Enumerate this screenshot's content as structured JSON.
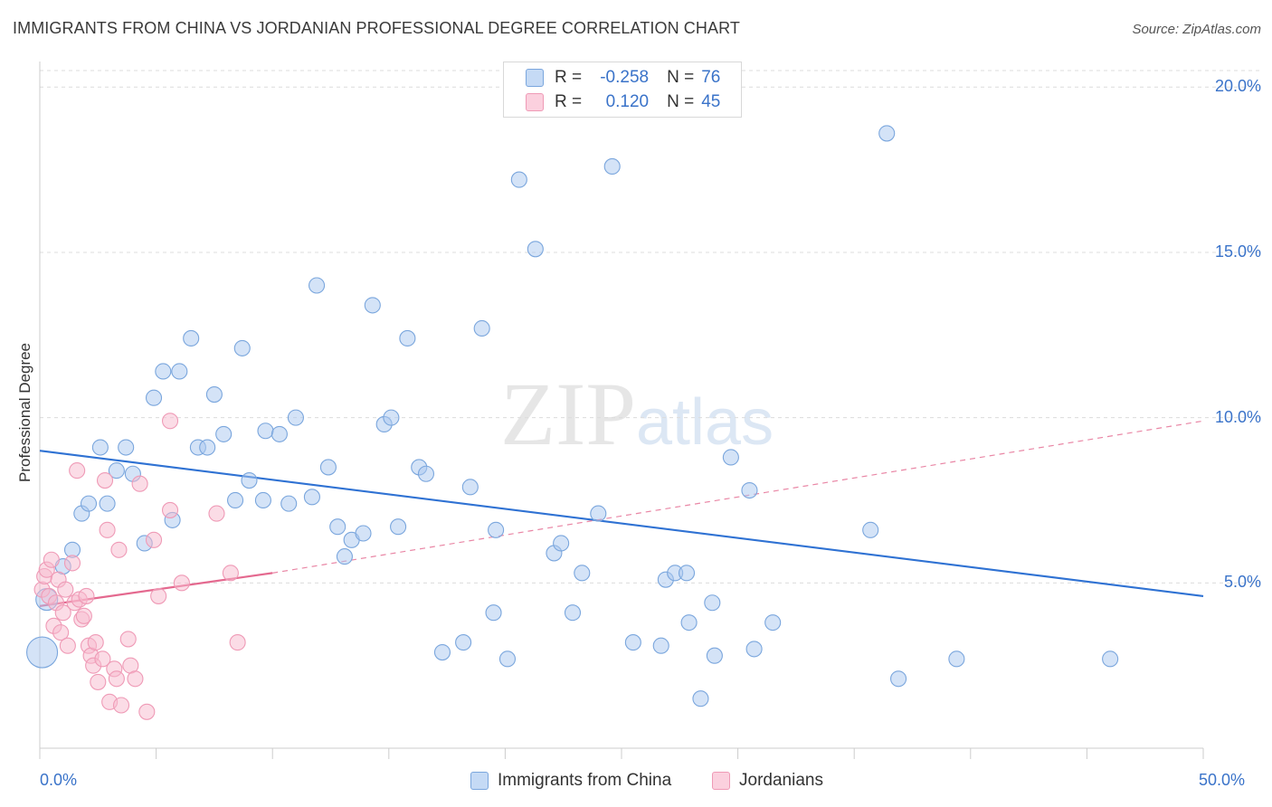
{
  "title": "IMMIGRANTS FROM CHINA VS JORDANIAN PROFESSIONAL DEGREE CORRELATION CHART",
  "source": "Source: ZipAtlas.com",
  "watermark": {
    "main": "ZIP",
    "sub": "atlas"
  },
  "stats_box": [
    {
      "r_label": "R =",
      "r_value": "-0.258",
      "n_label": "N =",
      "n_value": "76"
    },
    {
      "r_label": "R =",
      "r_value": "0.120",
      "n_label": "N =",
      "n_value": "45"
    }
  ],
  "legend": [
    {
      "label": "Immigrants from China"
    },
    {
      "label": "Jordanians"
    }
  ],
  "colors": {
    "china_fill": "#a9c8ef",
    "china_stroke": "#7aa6dd",
    "china_line": "#2f72d3",
    "jordan_fill": "#f7b9cd",
    "jordan_stroke": "#ef9ab6",
    "jordan_line": "#e4698f",
    "axis_text": "#3a73c9",
    "grid": "#dcdcdc"
  },
  "chart_data": {
    "type": "scatter",
    "title": "IMMIGRANTS FROM CHINA VS JORDANIAN PROFESSIONAL DEGREE CORRELATION CHART",
    "xlabel": "",
    "ylabel": "Professional Degree",
    "xlim": [
      0,
      50
    ],
    "ylim": [
      0,
      20.5
    ],
    "x_tick_labels": [
      "0.0%",
      "50.0%"
    ],
    "y_ticks": [
      5,
      10,
      15,
      20
    ],
    "y_tick_labels": [
      "5.0%",
      "10.0%",
      "15.0%",
      "20.0%"
    ],
    "grid": "horizontal dashed",
    "legend_position": "bottom-center",
    "series": [
      {
        "name": "Immigrants from China",
        "r": -0.258,
        "n": 76,
        "points": [
          [
            0.1,
            2.9
          ],
          [
            0.3,
            4.5
          ],
          [
            1.0,
            5.5
          ],
          [
            1.4,
            6.0
          ],
          [
            1.8,
            7.1
          ],
          [
            2.1,
            7.4
          ],
          [
            2.6,
            9.1
          ],
          [
            2.9,
            7.4
          ],
          [
            3.3,
            8.4
          ],
          [
            3.7,
            9.1
          ],
          [
            4.0,
            8.3
          ],
          [
            4.5,
            6.2
          ],
          [
            4.9,
            10.6
          ],
          [
            5.3,
            11.4
          ],
          [
            5.7,
            6.9
          ],
          [
            6.0,
            11.4
          ],
          [
            6.5,
            12.4
          ],
          [
            6.8,
            9.1
          ],
          [
            7.2,
            9.1
          ],
          [
            7.5,
            10.7
          ],
          [
            7.9,
            9.5
          ],
          [
            8.4,
            7.5
          ],
          [
            8.7,
            12.1
          ],
          [
            9.0,
            8.1
          ],
          [
            9.6,
            7.5
          ],
          [
            9.7,
            9.6
          ],
          [
            10.3,
            9.5
          ],
          [
            10.7,
            7.4
          ],
          [
            11.0,
            10.0
          ],
          [
            11.7,
            7.6
          ],
          [
            11.9,
            14.0
          ],
          [
            12.4,
            8.5
          ],
          [
            12.8,
            6.7
          ],
          [
            13.1,
            5.8
          ],
          [
            13.4,
            6.3
          ],
          [
            13.9,
            6.5
          ],
          [
            14.3,
            13.4
          ],
          [
            14.8,
            9.8
          ],
          [
            15.1,
            10.0
          ],
          [
            15.4,
            6.7
          ],
          [
            15.8,
            12.4
          ],
          [
            16.3,
            8.5
          ],
          [
            16.6,
            8.3
          ],
          [
            17.3,
            2.9
          ],
          [
            18.2,
            3.2
          ],
          [
            18.5,
            7.9
          ],
          [
            19.0,
            12.7
          ],
          [
            19.5,
            4.1
          ],
          [
            19.6,
            6.6
          ],
          [
            20.1,
            2.7
          ],
          [
            20.6,
            17.2
          ],
          [
            21.3,
            15.1
          ],
          [
            22.1,
            5.9
          ],
          [
            22.4,
            6.2
          ],
          [
            22.9,
            4.1
          ],
          [
            23.3,
            5.3
          ],
          [
            24.0,
            7.1
          ],
          [
            24.6,
            17.6
          ],
          [
            25.5,
            3.2
          ],
          [
            26.7,
            3.1
          ],
          [
            26.9,
            5.1
          ],
          [
            27.3,
            5.3
          ],
          [
            27.8,
            5.3
          ],
          [
            27.9,
            3.8
          ],
          [
            28.4,
            1.5
          ],
          [
            28.9,
            4.4
          ],
          [
            29.0,
            2.8
          ],
          [
            29.7,
            8.8
          ],
          [
            30.5,
            7.8
          ],
          [
            30.7,
            3.0
          ],
          [
            31.5,
            3.8
          ],
          [
            35.7,
            6.6
          ],
          [
            36.4,
            18.6
          ],
          [
            36.9,
            2.1
          ],
          [
            39.4,
            2.7
          ],
          [
            46.0,
            2.7
          ]
        ],
        "trend": {
          "x": [
            0,
            50
          ],
          "y": [
            9.0,
            4.6
          ]
        }
      },
      {
        "name": "Jordanians",
        "r": 0.12,
        "n": 45,
        "points": [
          [
            0.1,
            4.8
          ],
          [
            0.2,
            5.2
          ],
          [
            0.3,
            5.4
          ],
          [
            0.4,
            4.6
          ],
          [
            0.5,
            5.7
          ],
          [
            0.6,
            3.7
          ],
          [
            0.7,
            4.4
          ],
          [
            0.8,
            5.1
          ],
          [
            0.9,
            3.5
          ],
          [
            1.0,
            4.1
          ],
          [
            1.1,
            4.8
          ],
          [
            1.2,
            3.1
          ],
          [
            1.4,
            5.6
          ],
          [
            1.5,
            4.4
          ],
          [
            1.6,
            8.4
          ],
          [
            1.7,
            4.5
          ],
          [
            1.8,
            3.9
          ],
          [
            1.9,
            4.0
          ],
          [
            2.0,
            4.6
          ],
          [
            2.1,
            3.1
          ],
          [
            2.2,
            2.8
          ],
          [
            2.3,
            2.5
          ],
          [
            2.4,
            3.2
          ],
          [
            2.5,
            2.0
          ],
          [
            2.7,
            2.7
          ],
          [
            2.8,
            8.1
          ],
          [
            2.9,
            6.6
          ],
          [
            3.0,
            1.4
          ],
          [
            3.2,
            2.4
          ],
          [
            3.3,
            2.1
          ],
          [
            3.4,
            6.0
          ],
          [
            3.5,
            1.3
          ],
          [
            3.8,
            3.3
          ],
          [
            3.9,
            2.5
          ],
          [
            4.1,
            2.1
          ],
          [
            4.3,
            8.0
          ],
          [
            4.6,
            1.1
          ],
          [
            4.9,
            6.3
          ],
          [
            5.1,
            4.6
          ],
          [
            5.6,
            9.9
          ],
          [
            5.6,
            7.2
          ],
          [
            6.1,
            5.0
          ],
          [
            7.6,
            7.1
          ],
          [
            8.2,
            5.3
          ],
          [
            8.5,
            3.2
          ]
        ],
        "trend_solid": {
          "x": [
            0,
            10
          ],
          "y": [
            4.3,
            5.3
          ]
        },
        "trend_dashed": {
          "x": [
            10,
            50
          ],
          "y": [
            5.3,
            9.9
          ]
        }
      }
    ]
  }
}
